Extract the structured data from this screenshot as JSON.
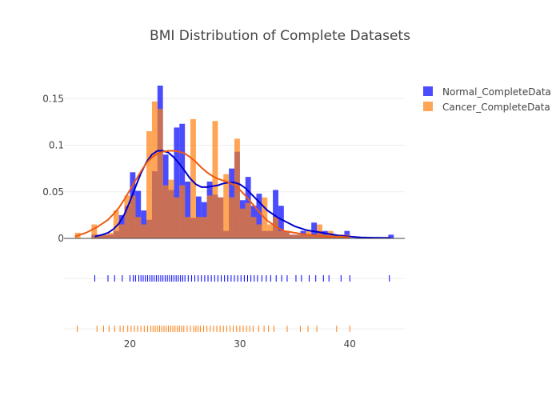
{
  "chart_data": {
    "type": "bar",
    "subtype": "distplot",
    "title": "BMI Distribution of Complete Datasets",
    "xlabel": "",
    "ylabel": "",
    "xlim": [
      14,
      45
    ],
    "ylim": [
      0,
      0.17
    ],
    "x_ticks": [
      20,
      30,
      40
    ],
    "y_ticks": [
      0,
      0.05,
      0.1,
      0.15
    ],
    "y_tick_labels": [
      "0",
      "0.05",
      "0.1",
      "0.15"
    ],
    "barmode": "overlay",
    "grid": true,
    "legend_position": "top-right",
    "series": [
      {
        "name": "Normal_CompleteData",
        "color": "#0000ff",
        "bin_width": 0.5,
        "bins": [
          [
            16.75,
            0.004
          ],
          [
            17.25,
            0.004
          ],
          [
            17.75,
            0.004
          ],
          [
            18.25,
            0.004
          ],
          [
            18.75,
            0.008
          ],
          [
            19.25,
            0.025
          ],
          [
            19.75,
            0.035
          ],
          [
            20.25,
            0.071
          ],
          [
            20.75,
            0.051
          ],
          [
            21.25,
            0.03
          ],
          [
            21.75,
            0.02
          ],
          [
            22.25,
            0.072
          ],
          [
            22.75,
            0.164
          ],
          [
            23.25,
            0.09
          ],
          [
            23.75,
            0.052
          ],
          [
            24.25,
            0.119
          ],
          [
            24.75,
            0.123
          ],
          [
            25.25,
            0.061
          ],
          [
            25.75,
            0.022
          ],
          [
            26.25,
            0.045
          ],
          [
            26.75,
            0.039
          ],
          [
            27.25,
            0.061
          ],
          [
            27.75,
            0.047
          ],
          [
            28.25,
            0.044
          ],
          [
            28.75,
            0.008
          ],
          [
            29.25,
            0.075
          ],
          [
            29.75,
            0.093
          ],
          [
            30.25,
            0.041
          ],
          [
            30.75,
            0.066
          ],
          [
            31.25,
            0.035
          ],
          [
            31.75,
            0.048
          ],
          [
            32.25,
            0.008
          ],
          [
            32.75,
            0.008
          ],
          [
            33.25,
            0.052
          ],
          [
            33.75,
            0.035
          ],
          [
            34.25,
            0.008
          ],
          [
            34.75,
            0.004
          ],
          [
            35.25,
            0.004
          ],
          [
            35.75,
            0.008
          ],
          [
            36.25,
            0.004
          ],
          [
            36.75,
            0.017
          ],
          [
            37.25,
            0.008
          ],
          [
            37.75,
            0.008
          ],
          [
            38.25,
            0.004
          ],
          [
            38.75,
            0.004
          ],
          [
            39.25,
            0.004
          ],
          [
            39.75,
            0.008
          ],
          [
            40.25,
            0.0
          ],
          [
            40.75,
            0.0
          ],
          [
            41.25,
            0.0
          ],
          [
            41.75,
            0.0
          ],
          [
            42.25,
            0.0
          ],
          [
            42.75,
            0.0
          ],
          [
            43.25,
            0.0
          ],
          [
            43.75,
            0.004
          ]
        ],
        "kde": [
          [
            16.8,
            0.002
          ],
          [
            17.5,
            0.004
          ],
          [
            18.0,
            0.006
          ],
          [
            18.5,
            0.01
          ],
          [
            19.0,
            0.016
          ],
          [
            19.5,
            0.026
          ],
          [
            20.0,
            0.04
          ],
          [
            20.5,
            0.055
          ],
          [
            21.0,
            0.07
          ],
          [
            21.5,
            0.082
          ],
          [
            22.0,
            0.09
          ],
          [
            22.5,
            0.094
          ],
          [
            23.0,
            0.094
          ],
          [
            23.5,
            0.092
          ],
          [
            24.0,
            0.087
          ],
          [
            24.5,
            0.08
          ],
          [
            25.0,
            0.072
          ],
          [
            25.5,
            0.064
          ],
          [
            26.0,
            0.058
          ],
          [
            26.5,
            0.055
          ],
          [
            27.0,
            0.055
          ],
          [
            27.5,
            0.056
          ],
          [
            28.0,
            0.057
          ],
          [
            28.5,
            0.059
          ],
          [
            29.0,
            0.06
          ],
          [
            29.5,
            0.06
          ],
          [
            30.0,
            0.058
          ],
          [
            30.5,
            0.054
          ],
          [
            31.0,
            0.048
          ],
          [
            31.5,
            0.042
          ],
          [
            32.0,
            0.036
          ],
          [
            32.5,
            0.03
          ],
          [
            33.0,
            0.026
          ],
          [
            33.5,
            0.022
          ],
          [
            34.0,
            0.019
          ],
          [
            34.5,
            0.016
          ],
          [
            35.0,
            0.013
          ],
          [
            35.5,
            0.011
          ],
          [
            36.0,
            0.009
          ],
          [
            36.5,
            0.008
          ],
          [
            37.0,
            0.007
          ],
          [
            37.5,
            0.006
          ],
          [
            38.0,
            0.005
          ],
          [
            38.5,
            0.004
          ],
          [
            39.0,
            0.003
          ],
          [
            40.0,
            0.002
          ],
          [
            41.0,
            0.001
          ],
          [
            42.0,
            0.0008
          ],
          [
            43.7,
            0.0005
          ]
        ],
        "rug": [
          16.8,
          18.0,
          18.6,
          19.3,
          20.0,
          20.3,
          20.5,
          20.8,
          21.0,
          21.2,
          21.4,
          21.6,
          21.8,
          22.0,
          22.2,
          22.4,
          22.6,
          22.8,
          23.0,
          23.2,
          23.4,
          23.6,
          23.8,
          24.0,
          24.2,
          24.4,
          24.6,
          24.8,
          25.0,
          25.3,
          25.6,
          25.9,
          26.2,
          26.5,
          26.8,
          27.1,
          27.4,
          27.7,
          28.0,
          28.3,
          28.6,
          28.9,
          29.2,
          29.5,
          29.8,
          30.1,
          30.4,
          30.7,
          31.0,
          31.3,
          31.6,
          32.0,
          32.4,
          32.8,
          33.3,
          33.8,
          34.3,
          35.1,
          35.6,
          36.3,
          36.9,
          37.6,
          38.1,
          39.2,
          40.0,
          43.6
        ]
      },
      {
        "name": "Cancer_CompleteData",
        "color": "#ff7f0e",
        "bin_width": 0.5,
        "bins": [
          [
            15.25,
            0.006
          ],
          [
            15.75,
            0.0
          ],
          [
            16.25,
            0.0
          ],
          [
            16.75,
            0.015
          ],
          [
            17.25,
            0.004
          ],
          [
            17.75,
            0.004
          ],
          [
            18.25,
            0.006
          ],
          [
            18.75,
            0.03
          ],
          [
            19.25,
            0.015
          ],
          [
            19.75,
            0.046
          ],
          [
            20.25,
            0.046
          ],
          [
            20.75,
            0.023
          ],
          [
            21.25,
            0.015
          ],
          [
            21.75,
            0.115
          ],
          [
            22.25,
            0.147
          ],
          [
            22.75,
            0.139
          ],
          [
            23.25,
            0.057
          ],
          [
            23.75,
            0.063
          ],
          [
            24.25,
            0.044
          ],
          [
            24.75,
            0.057
          ],
          [
            25.25,
            0.023
          ],
          [
            25.75,
            0.128
          ],
          [
            26.25,
            0.023
          ],
          [
            26.75,
            0.023
          ],
          [
            27.25,
            0.046
          ],
          [
            27.75,
            0.126
          ],
          [
            28.25,
            0.044
          ],
          [
            28.75,
            0.069
          ],
          [
            29.25,
            0.044
          ],
          [
            29.75,
            0.107
          ],
          [
            30.25,
            0.032
          ],
          [
            30.75,
            0.038
          ],
          [
            31.25,
            0.023
          ],
          [
            31.75,
            0.015
          ],
          [
            32.25,
            0.044
          ],
          [
            32.75,
            0.015
          ],
          [
            33.25,
            0.023
          ],
          [
            33.75,
            0.008
          ],
          [
            34.25,
            0.008
          ],
          [
            34.75,
            0.004
          ],
          [
            35.25,
            0.004
          ],
          [
            35.75,
            0.004
          ],
          [
            36.25,
            0.008
          ],
          [
            36.75,
            0.004
          ],
          [
            37.25,
            0.015
          ],
          [
            37.75,
            0.004
          ],
          [
            38.25,
            0.008
          ],
          [
            38.75,
            0.004
          ],
          [
            39.25,
            0.004
          ],
          [
            39.75,
            0.004
          ]
        ],
        "kde": [
          [
            15.0,
            0.002
          ],
          [
            15.5,
            0.004
          ],
          [
            16.0,
            0.006
          ],
          [
            16.5,
            0.009
          ],
          [
            17.0,
            0.012
          ],
          [
            17.5,
            0.016
          ],
          [
            18.0,
            0.02
          ],
          [
            18.5,
            0.026
          ],
          [
            19.0,
            0.033
          ],
          [
            19.5,
            0.042
          ],
          [
            20.0,
            0.052
          ],
          [
            20.5,
            0.062
          ],
          [
            21.0,
            0.072
          ],
          [
            21.5,
            0.081
          ],
          [
            22.0,
            0.087
          ],
          [
            22.5,
            0.091
          ],
          [
            23.0,
            0.093
          ],
          [
            23.5,
            0.094
          ],
          [
            24.0,
            0.094
          ],
          [
            24.5,
            0.093
          ],
          [
            25.0,
            0.091
          ],
          [
            25.5,
            0.087
          ],
          [
            26.0,
            0.082
          ],
          [
            26.5,
            0.076
          ],
          [
            27.0,
            0.071
          ],
          [
            27.5,
            0.067
          ],
          [
            28.0,
            0.064
          ],
          [
            28.5,
            0.062
          ],
          [
            29.0,
            0.06
          ],
          [
            29.5,
            0.057
          ],
          [
            30.0,
            0.052
          ],
          [
            30.5,
            0.046
          ],
          [
            31.0,
            0.039
          ],
          [
            31.5,
            0.032
          ],
          [
            32.0,
            0.025
          ],
          [
            32.5,
            0.019
          ],
          [
            33.0,
            0.015
          ],
          [
            33.5,
            0.011
          ],
          [
            34.0,
            0.008
          ],
          [
            35.0,
            0.006
          ],
          [
            36.0,
            0.004
          ],
          [
            37.0,
            0.003
          ],
          [
            38.0,
            0.002
          ],
          [
            39.0,
            0.002
          ],
          [
            40.0,
            0.001
          ]
        ],
        "rug": [
          15.2,
          17.0,
          17.6,
          18.1,
          18.6,
          19.1,
          19.4,
          19.8,
          20.1,
          20.4,
          20.7,
          21.0,
          21.3,
          21.6,
          21.9,
          22.1,
          22.3,
          22.5,
          22.7,
          22.9,
          23.1,
          23.3,
          23.5,
          23.7,
          23.9,
          24.1,
          24.3,
          24.5,
          24.7,
          24.9,
          25.2,
          25.5,
          25.8,
          26.0,
          26.2,
          26.4,
          26.7,
          27.0,
          27.3,
          27.6,
          27.9,
          28.2,
          28.5,
          28.8,
          29.1,
          29.4,
          29.7,
          30.0,
          30.3,
          30.6,
          30.9,
          31.2,
          31.7,
          32.2,
          32.6,
          33.1,
          34.3,
          35.5,
          36.2,
          37.0,
          38.8,
          40.0
        ]
      }
    ]
  }
}
